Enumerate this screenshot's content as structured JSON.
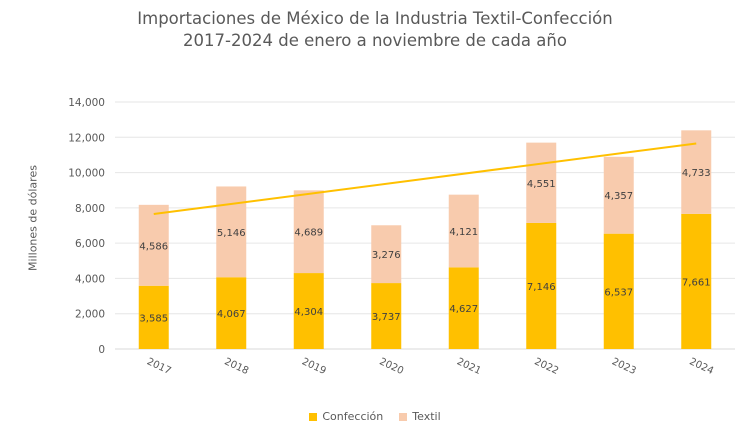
{
  "chart_data": {
    "type": "bar",
    "stacked": true,
    "title": "Importaciones de México de la Industria Textil-Confección",
    "subtitle": "2017-2024 de enero a noviembre de cada año",
    "xlabel": "",
    "ylabel": "Millones de dólares",
    "ylim": [
      0,
      14000
    ],
    "yticks": [
      0,
      2000,
      4000,
      6000,
      8000,
      10000,
      12000,
      14000
    ],
    "ytick_labels": [
      "0",
      "2,000",
      "4,000",
      "6,000",
      "8,000",
      "10,000",
      "12,000",
      "14,000"
    ],
    "grid": true,
    "legend_position": "bottom",
    "categories": [
      "2017",
      "2018",
      "2019",
      "2020",
      "2021",
      "2022",
      "2023",
      "2024"
    ],
    "series": [
      {
        "name": "Confección",
        "color": "#FFC000",
        "values": [
          3585,
          4067,
          4304,
          3737,
          4627,
          7146,
          6537,
          7661
        ],
        "labels": [
          "3,585",
          "4,067",
          "4,304",
          "3,737",
          "4,627",
          "7,146",
          "6,537",
          "7,661"
        ]
      },
      {
        "name": "Textil",
        "color": "#F8CBAD",
        "values": [
          4586,
          5146,
          4689,
          3276,
          4121,
          4551,
          4357,
          4733
        ],
        "labels": [
          "4,586",
          "5,146",
          "4,689",
          "3,276",
          "4,121",
          "4,551",
          "4,357",
          "4,733"
        ]
      }
    ],
    "trendline": {
      "type": "linear",
      "color": "#FFC000",
      "start_value": 7650,
      "end_value": 11650
    }
  }
}
